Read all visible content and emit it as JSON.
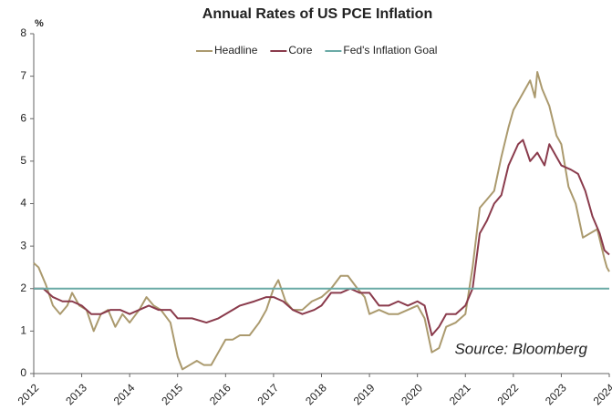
{
  "chart_data": {
    "type": "line",
    "title": "Annual Rates of US PCE Inflation",
    "y_label": "%",
    "annotation": "Source: Bloomberg",
    "xlim": [
      2012,
      2024
    ],
    "ylim": [
      0,
      8
    ],
    "xticks": [
      2012,
      2013,
      2014,
      2015,
      2016,
      2017,
      2018,
      2019,
      2020,
      2021,
      2022,
      2023,
      2024
    ],
    "yticks": [
      0,
      1,
      2,
      3,
      4,
      5,
      6,
      7,
      8
    ],
    "legend": "top",
    "series": [
      {
        "name": "Headline",
        "color": "#ab9a6e",
        "x": [
          2012.0,
          2012.1,
          2012.25,
          2012.4,
          2012.55,
          2012.7,
          2012.8,
          2012.95,
          2013.1,
          2013.25,
          2013.4,
          2013.55,
          2013.7,
          2013.85,
          2014.0,
          2014.2,
          2014.35,
          2014.5,
          2014.65,
          2014.85,
          2015.0,
          2015.1,
          2015.25,
          2015.4,
          2015.55,
          2015.7,
          2015.85,
          2016.0,
          2016.15,
          2016.3,
          2016.5,
          2016.7,
          2016.85,
          2017.0,
          2017.1,
          2017.25,
          2017.4,
          2017.6,
          2017.8,
          2018.0,
          2018.2,
          2018.4,
          2018.55,
          2018.75,
          2018.9,
          2019.0,
          2019.2,
          2019.4,
          2019.6,
          2019.8,
          2020.0,
          2020.15,
          2020.3,
          2020.45,
          2020.6,
          2020.8,
          2021.0,
          2021.15,
          2021.3,
          2021.45,
          2021.6,
          2021.75,
          2021.9,
          2022.0,
          2022.2,
          2022.35,
          2022.45,
          2022.5,
          2022.6,
          2022.75,
          2022.9,
          2023.0,
          2023.15,
          2023.3,
          2023.45,
          2023.6,
          2023.75,
          2023.9,
          2023.95,
          2024.0
        ],
        "values": [
          2.6,
          2.5,
          2.1,
          1.6,
          1.4,
          1.6,
          1.9,
          1.6,
          1.5,
          1.0,
          1.4,
          1.5,
          1.1,
          1.4,
          1.2,
          1.5,
          1.8,
          1.6,
          1.5,
          1.2,
          0.4,
          0.1,
          0.2,
          0.3,
          0.2,
          0.2,
          0.5,
          0.8,
          0.8,
          0.9,
          0.9,
          1.2,
          1.5,
          2.0,
          2.2,
          1.7,
          1.5,
          1.5,
          1.7,
          1.8,
          2.0,
          2.3,
          2.3,
          2.0,
          1.8,
          1.4,
          1.5,
          1.4,
          1.4,
          1.5,
          1.6,
          1.3,
          0.5,
          0.6,
          1.1,
          1.2,
          1.4,
          2.5,
          3.9,
          4.1,
          4.3,
          5.1,
          5.8,
          6.2,
          6.6,
          6.9,
          6.5,
          7.1,
          6.7,
          6.3,
          5.6,
          5.4,
          4.4,
          4.0,
          3.2,
          3.3,
          3.4,
          2.7,
          2.5,
          2.4
        ]
      },
      {
        "name": "Core",
        "color": "#8a3b4c",
        "x": [
          2012.0,
          2012.2,
          2012.4,
          2012.6,
          2012.8,
          2013.0,
          2013.2,
          2013.4,
          2013.6,
          2013.8,
          2014.0,
          2014.2,
          2014.4,
          2014.6,
          2014.85,
          2015.0,
          2015.3,
          2015.6,
          2015.85,
          2016.0,
          2016.3,
          2016.6,
          2016.85,
          2017.0,
          2017.2,
          2017.4,
          2017.6,
          2017.85,
          2018.0,
          2018.2,
          2018.4,
          2018.6,
          2018.8,
          2019.0,
          2019.2,
          2019.4,
          2019.6,
          2019.8,
          2020.0,
          2020.15,
          2020.3,
          2020.45,
          2020.6,
          2020.8,
          2021.0,
          2021.15,
          2021.3,
          2021.45,
          2021.6,
          2021.75,
          2021.9,
          2022.1,
          2022.2,
          2022.35,
          2022.5,
          2022.65,
          2022.75,
          2022.9,
          2023.0,
          2023.2,
          2023.35,
          2023.5,
          2023.65,
          2023.8,
          2023.9,
          2024.0
        ],
        "values": [
          2.0,
          2.0,
          1.8,
          1.7,
          1.7,
          1.6,
          1.4,
          1.4,
          1.5,
          1.5,
          1.4,
          1.5,
          1.6,
          1.5,
          1.5,
          1.3,
          1.3,
          1.2,
          1.3,
          1.4,
          1.6,
          1.7,
          1.8,
          1.8,
          1.7,
          1.5,
          1.4,
          1.5,
          1.6,
          1.9,
          1.9,
          2.0,
          1.9,
          1.9,
          1.6,
          1.6,
          1.7,
          1.6,
          1.7,
          1.6,
          0.9,
          1.1,
          1.4,
          1.4,
          1.6,
          2.0,
          3.3,
          3.6,
          4.0,
          4.2,
          4.9,
          5.4,
          5.5,
          5.0,
          5.2,
          4.9,
          5.4,
          5.1,
          4.9,
          4.8,
          4.7,
          4.3,
          3.7,
          3.3,
          2.9,
          2.8
        ]
      },
      {
        "name": "Fed's Inflation Goal",
        "color": "#6aaaa6",
        "x": [
          2012,
          2024
        ],
        "values": [
          2,
          2
        ]
      }
    ]
  }
}
